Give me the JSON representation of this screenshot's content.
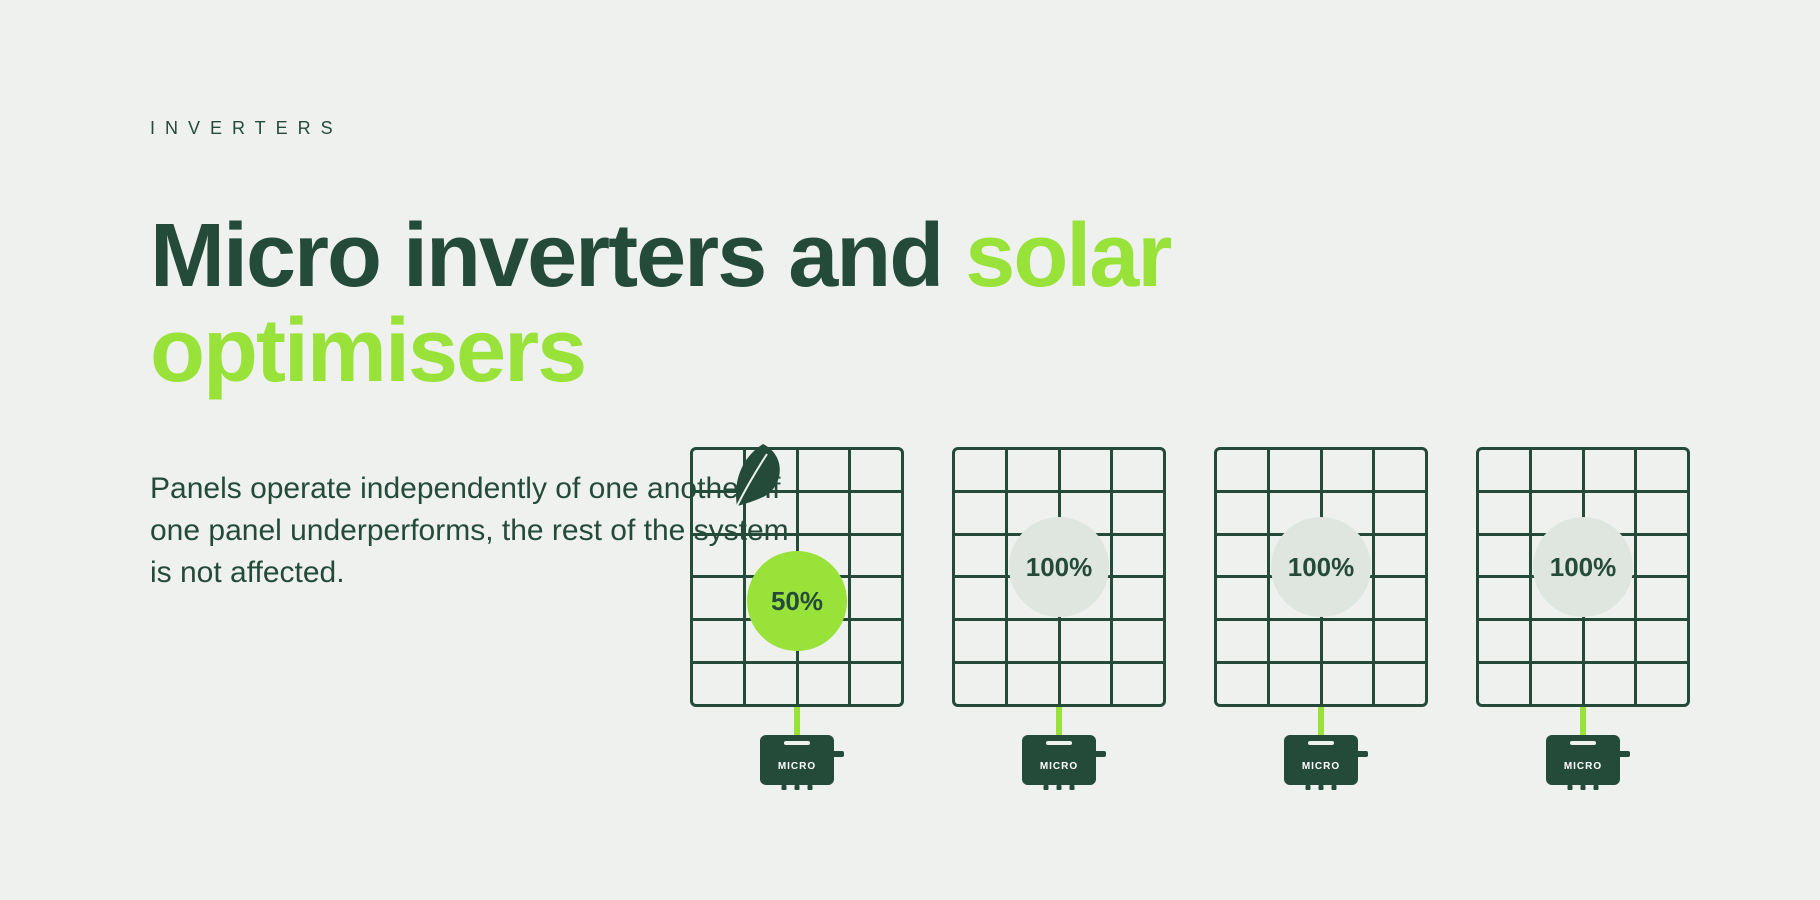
{
  "colors": {
    "background": "#eef1ee",
    "primary_dark": "#244a3a",
    "accent_green": "#99e23a",
    "badge_neutral": "#dfe6e0",
    "white": "#ffffff"
  },
  "eyebrow": "INVERTERS",
  "headline": {
    "part1": "Micro inverters and ",
    "accent": "solar optimisers"
  },
  "body": "Panels operate independently of one another. If one panel underperforms, the rest of the system is not affected.",
  "diagram": {
    "panel_grid": {
      "cols": 4,
      "rows": 6
    },
    "panels": [
      {
        "percent": "50%",
        "reduced": true,
        "has_leaf": true
      },
      {
        "percent": "100%",
        "reduced": false,
        "has_leaf": false
      },
      {
        "percent": "100%",
        "reduced": false,
        "has_leaf": false
      },
      {
        "percent": "100%",
        "reduced": false,
        "has_leaf": false
      }
    ],
    "micro_label": "MICRO"
  },
  "typography": {
    "eyebrow_fontsize": 18,
    "headline_fontsize": 90,
    "body_fontsize": 30,
    "badge_fontsize": 26,
    "micro_label_fontsize": 10
  }
}
